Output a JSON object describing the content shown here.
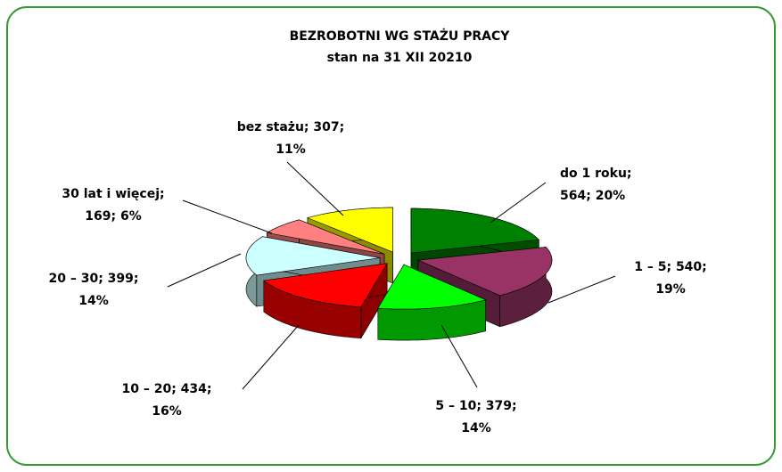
{
  "chart_data": {
    "type": "pie3d",
    "title": "BEZROBOTNI WG STAŻU PRACY",
    "subtitle": "stan na 31 XII 20210",
    "categories": [
      "do 1 roku",
      "1 – 5",
      "5 – 10",
      "10 – 20",
      "20 – 30",
      "30 lat i więcej",
      "bez stażu"
    ],
    "values": [
      564,
      540,
      379,
      434,
      399,
      169,
      307
    ],
    "colors": [
      "#008000",
      "#993366",
      "#00ff00",
      "#ff0000",
      "#ccffff",
      "#ff8080",
      "#ffff00"
    ],
    "data_labels": [
      [
        "do 1 roku;",
        "564; 20%"
      ],
      [
        "1 – 5; 540;",
        "19%"
      ],
      [
        "5 – 10; 379;",
        "14%"
      ],
      [
        "10 – 20; 434;",
        "16%"
      ],
      [
        "20 – 30; 399;",
        "14%"
      ],
      [
        "30 lat i więcej;",
        "169; 6%"
      ],
      [
        "bez stażu; 307;",
        "11%"
      ]
    ]
  }
}
